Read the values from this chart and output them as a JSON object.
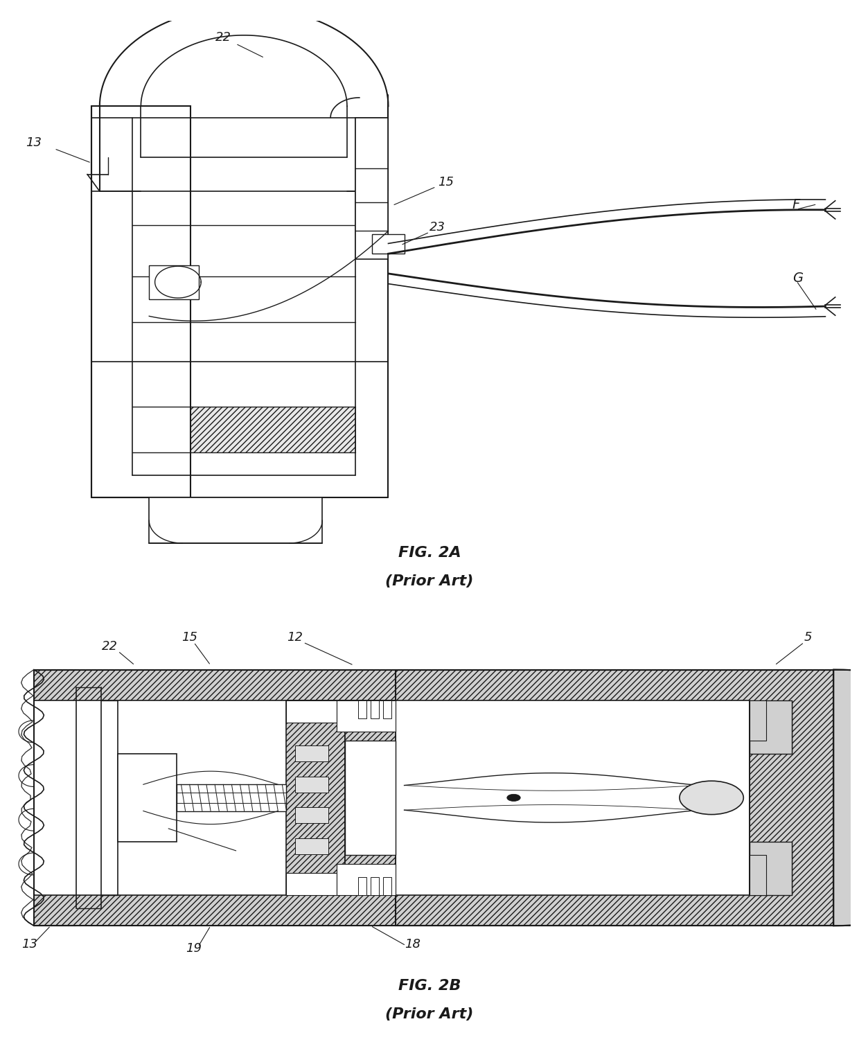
{
  "fig_width": 12.4,
  "fig_height": 15.17,
  "background_color": "#ffffff",
  "line_color": "#1a1a1a",
  "fig2a_label": "FIG. 2A",
  "fig2a_sublabel": "(Prior Art)",
  "fig2b_label": "FIG. 2B",
  "fig2b_sublabel": "(Prior Art)",
  "label_fontsize": 15,
  "ref_fontsize": 13
}
